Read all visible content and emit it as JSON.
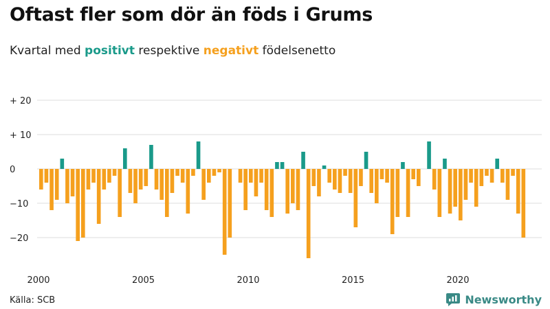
{
  "title": "Oftast fler som dör än föds i Grums",
  "subtitle": {
    "prefix": "Kvartal med",
    "positive": "positivt",
    "middle": "respektive",
    "negative": "negativt",
    "suffix": "födelsenetto"
  },
  "source": "Källa: SCB",
  "brand": "Newsworthy",
  "colors": {
    "positive": "#1a9a8a",
    "negative": "#f5a01e",
    "brand": "#3a8a86"
  },
  "chart_data": {
    "type": "bar",
    "x_start": 2000.0,
    "x_step": 0.25,
    "y_ticks": [
      {
        "value": 20,
        "label": "+ 20"
      },
      {
        "value": 10,
        "label": "+ 10"
      },
      {
        "value": 0,
        "label": "0"
      },
      {
        "value": -10,
        "label": "−10"
      },
      {
        "value": -20,
        "label": "−20"
      }
    ],
    "x_ticks": [
      {
        "value": 2000,
        "label": "2000"
      },
      {
        "value": 2005,
        "label": "2005"
      },
      {
        "value": 2010,
        "label": "2010"
      },
      {
        "value": 2015,
        "label": "2015"
      },
      {
        "value": 2020,
        "label": "2020"
      }
    ],
    "ylim": [
      -26,
      20
    ],
    "xlim": [
      2000,
      2024
    ],
    "grid": true,
    "values": [
      -6,
      -4,
      -12,
      -9,
      3,
      -10,
      -8,
      -21,
      -20,
      -6,
      -4,
      -16,
      -6,
      -4,
      -2,
      -14,
      6,
      -7,
      -10,
      -6,
      -5,
      7,
      -6,
      -9,
      -14,
      -7,
      -2,
      -4,
      -13,
      -2,
      8,
      -9,
      -4,
      -2,
      -1,
      -25,
      -20,
      0,
      -4,
      -12,
      -4,
      -8,
      -4,
      -12,
      -14,
      2,
      2,
      -13,
      -10,
      -12,
      5,
      -26,
      -5,
      -8,
      1,
      -4,
      -6,
      -7,
      -2,
      -7,
      -17,
      -5,
      5,
      -7,
      -10,
      -3,
      -4,
      -19,
      -14,
      2,
      -14,
      -3,
      -5,
      0,
      8,
      -6,
      -14,
      3,
      -13,
      -11,
      -15,
      -9,
      -4,
      -11,
      -5,
      -2,
      -4,
      3,
      -4,
      -9,
      -2,
      -13,
      -20
    ]
  }
}
